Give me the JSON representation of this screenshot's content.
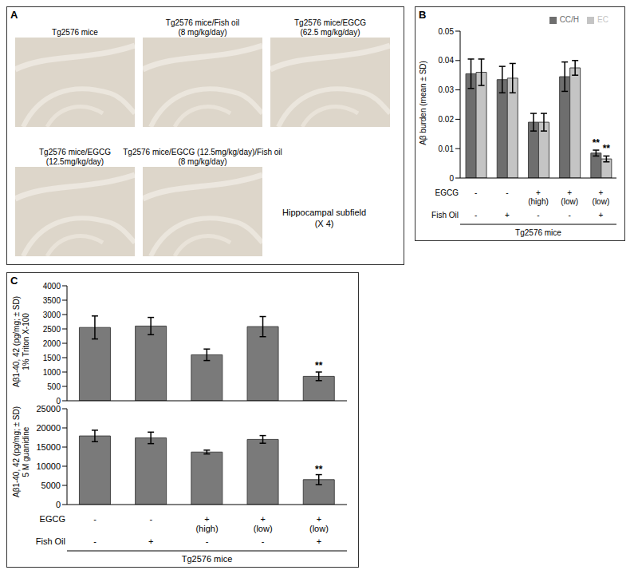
{
  "chart_data": [
    {
      "type": "image_grid",
      "panel": "A",
      "panels": [
        {
          "title": [
            "Tg2576 mice"
          ]
        },
        {
          "title": [
            "Tg2576 mice/Fish oil",
            "(8 mg/kg/day)"
          ]
        },
        {
          "title": [
            "Tg2576 mice/EGCG",
            "(62.5 mg/kg/day)"
          ]
        },
        {
          "title": [
            "Tg2576 mice/EGCG",
            "(12.5mg/kg/day)"
          ]
        },
        {
          "title": [
            "Tg2576 mice/EGCG (12.5mg/kg/day)/Fish oil",
            "(8 mg/kg/day)"
          ]
        }
      ],
      "caption": [
        "Hippocampal subfield",
        "(X 4)"
      ]
    },
    {
      "type": "bar",
      "panel": "B",
      "ylabel": [
        "Aβ burden (mean ± SD)"
      ],
      "row_labels": [
        "EGCG",
        "Fish Oil"
      ],
      "categories": [
        [
          "-",
          "-"
        ],
        [
          "-",
          "+"
        ],
        [
          "+ (high)",
          "-"
        ],
        [
          "+ (low)",
          "-"
        ],
        [
          "+ (low)",
          "+"
        ]
      ],
      "group_label": "Tg2576 mice",
      "series": [
        {
          "name": "CC/H",
          "color": "#6e6e6e",
          "values": [
            0.0355,
            0.0335,
            0.019,
            0.0345,
            0.0085
          ],
          "errors": [
            0.005,
            0.0045,
            0.003,
            0.005,
            0.001
          ]
        },
        {
          "name": "EC",
          "color": "#c4c4c4",
          "values": [
            0.036,
            0.034,
            0.019,
            0.0375,
            0.0065
          ],
          "errors": [
            0.0045,
            0.005,
            0.003,
            0.0025,
            0.001
          ]
        }
      ],
      "ylim": [
        0,
        0.05
      ],
      "yticks": [
        0,
        0.01,
        0.02,
        0.03,
        0.04,
        0.05
      ],
      "legend": "top right",
      "annotations": [
        {
          "series": "CC/H",
          "index": 4,
          "text": "**"
        },
        {
          "series": "EC",
          "index": 4,
          "text": "**"
        }
      ]
    },
    {
      "type": "bar",
      "panel": "C",
      "ylabel": [
        "Aβ1-40, 42 (pg/mg; ± SD)",
        "1% Triton X-100"
      ],
      "color": "#7a7a7a",
      "values": [
        2550,
        2600,
        1600,
        2580,
        850
      ],
      "errors": [
        400,
        300,
        200,
        350,
        150
      ],
      "ylim": [
        0,
        4000
      ],
      "yticks": [
        0,
        500,
        1000,
        1500,
        2000,
        2500,
        3000,
        3500,
        4000
      ],
      "tick_labels": "y",
      "annotations": [
        {
          "index": 4,
          "text": "**"
        }
      ]
    },
    {
      "type": "bar",
      "ylabel": [
        "Aβ1-40, 42 (pg/mg; ± SD)",
        "5 M guanidine"
      ],
      "color": "#7a7a7a",
      "row_labels": [
        "EGCG",
        "Fish Oil"
      ],
      "categories": [
        [
          "-",
          "-"
        ],
        [
          "-",
          "+"
        ],
        [
          "+ (high)",
          "-"
        ],
        [
          "+ (low)",
          "-"
        ],
        [
          "+ (low)",
          "+"
        ]
      ],
      "group_label": "Tg2576 mice",
      "values": [
        17900,
        17400,
        13700,
        17000,
        6500
      ],
      "errors": [
        1500,
        1500,
        500,
        1000,
        1300
      ],
      "ylim": [
        0,
        25000
      ],
      "yticks": [
        0,
        5000,
        10000,
        15000,
        20000,
        25000
      ],
      "annotations": [
        {
          "index": 4,
          "text": "**"
        }
      ]
    }
  ]
}
